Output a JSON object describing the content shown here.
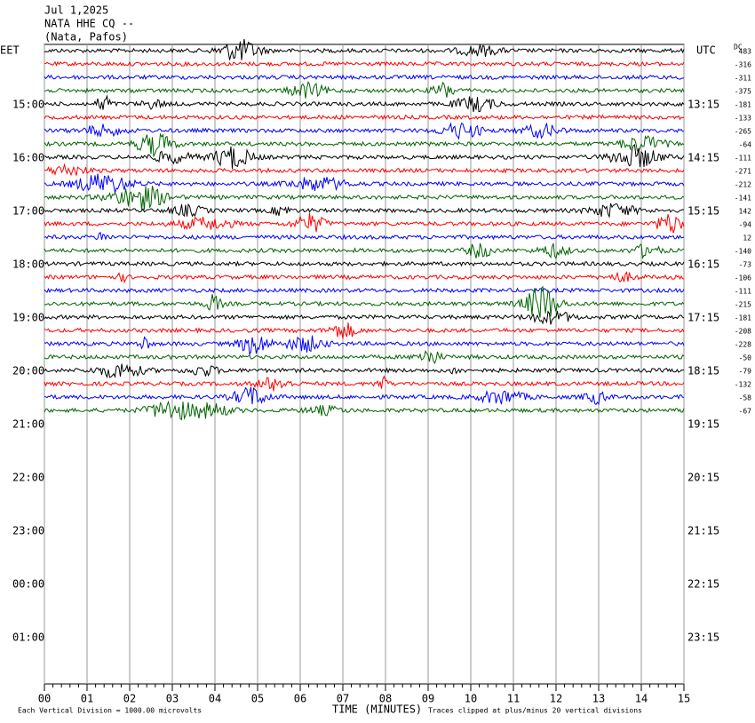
{
  "header": {
    "date": "Jul 1,2025",
    "station": "NATA HHE CQ --",
    "location": "(Nata, Pafos)"
  },
  "left_timezone": "EET",
  "right_timezone": "UTC",
  "dc_label": "DC",
  "left_hours": [
    "15:00",
    "16:00",
    "17:00",
    "18:00",
    "19:00",
    "20:00",
    "21:00",
    "22:00",
    "23:00",
    "00:00",
    "01:00"
  ],
  "right_hours": [
    "13:15",
    "14:15",
    "15:15",
    "16:15",
    "17:15",
    "18:15",
    "19:15",
    "20:15",
    "21:15",
    "22:15",
    "23:15"
  ],
  "dc_offsets": [
    483,
    -316,
    -311,
    -375,
    -181,
    -133,
    -265,
    -64,
    -111,
    -271,
    -212,
    -141,
    142,
    -94,
    12,
    -140,
    -73,
    -106,
    -111,
    -215,
    -181,
    -208,
    -228,
    -50,
    -79,
    -132,
    -58,
    -67
  ],
  "trace_colors": [
    "#000000",
    "#ff0000",
    "#0000ff",
    "#006400"
  ],
  "x_axis": {
    "label": "TIME (MINUTES)",
    "xlim": [
      0,
      15
    ],
    "xticks": [
      {
        "value": 0,
        "label": "00"
      },
      {
        "value": 1,
        "label": "01"
      },
      {
        "value": 2,
        "label": "02"
      },
      {
        "value": 3,
        "label": "03"
      },
      {
        "value": 4,
        "label": "04"
      },
      {
        "value": 5,
        "label": "05"
      },
      {
        "value": 6,
        "label": "06"
      },
      {
        "value": 7,
        "label": "07"
      },
      {
        "value": 8,
        "label": "08"
      },
      {
        "value": 9,
        "label": "09"
      },
      {
        "value": 10,
        "label": "10"
      },
      {
        "value": 11,
        "label": "11"
      },
      {
        "value": 12,
        "label": "12"
      },
      {
        "value": 13,
        "label": "13"
      },
      {
        "value": 14,
        "label": "14"
      },
      {
        "value": 15,
        "label": "15"
      }
    ]
  },
  "footer": {
    "scale": "Each Vertical Division = 1000.00 microvolts",
    "clip": "Traces clipped at plus/minus 20 vertical divisions"
  }
}
